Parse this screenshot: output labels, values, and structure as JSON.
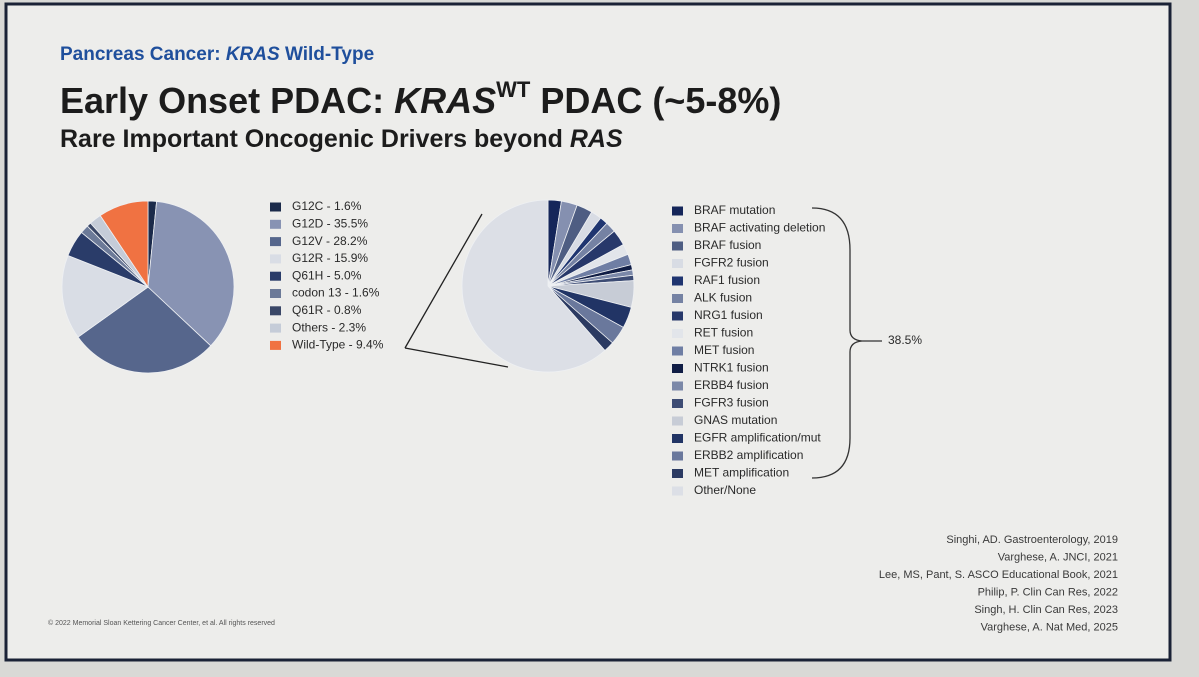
{
  "header": {
    "kicker": [
      "Pancreas Cancer: ",
      "KRAS",
      " Wild-Type"
    ],
    "title": [
      "Early Onset PDAC: ",
      "KRAS",
      "WT",
      " PDAC (~5-8%)"
    ],
    "subtitle": [
      "Rare Important Oncogenic Drivers beyond ",
      "RAS"
    ]
  },
  "chart_data": [
    {
      "type": "pie",
      "categories": [
        "G12C - 1.6%",
        "G12D - 35.5%",
        "G12V - 28.2%",
        "G12R - 15.9%",
        "Q61H - 5.0%",
        "codon 13 - 1.6%",
        "Q61R - 0.8%",
        "Others - 2.3%",
        "Wild-Type - 9.4%"
      ],
      "values": [
        1.6,
        35.5,
        28.2,
        15.9,
        5.0,
        1.6,
        0.8,
        2.3,
        9.4
      ],
      "colors": [
        "#1b2a4a",
        "#8893b3",
        "#56668c",
        "#d9dde5",
        "#2a3c69",
        "#6c7a98",
        "#3a4767",
        "#c5ccd8",
        "#f07242"
      ]
    },
    {
      "type": "pie",
      "categories": [
        "BRAF mutation",
        "BRAF activating deletion",
        "BRAF fusion",
        "FGFR2 fusion",
        "RAF1 fusion",
        "ALK fusion",
        "NRG1 fusion",
        "RET fusion",
        "MET fusion",
        "NTRK1 fusion",
        "ERBB4 fusion",
        "FGFR3 fusion",
        "GNAS mutation",
        "EGFR amplification/mut",
        "ERBB2 amplification",
        "MET amplification",
        "Other/None"
      ],
      "values": [
        2.5,
        3,
        3,
        2,
        1.5,
        2,
        3,
        2,
        2,
        1,
        1,
        1,
        5,
        4,
        3.5,
        2,
        61.5
      ],
      "colors": [
        "#15265a",
        "#8590b0",
        "#4e5d82",
        "#d8dce4",
        "#1f3570",
        "#7582a3",
        "#27386a",
        "#e2e5ea",
        "#6f7ea4",
        "#101d45",
        "#7b88a8",
        "#3d4c74",
        "#c7ccd6",
        "#213465",
        "#6a789c",
        "#2b3a62",
        "#dcdfe6"
      ],
      "annotation": "38.5%"
    }
  ],
  "references": [
    "Singhi, AD. Gastroenterology, 2019",
    "Varghese, A. JNCI, 2021",
    "Lee, MS, Pant, S. ASCO Educational Book, 2021",
    "Philip, P. Clin Can Res, 2022",
    "Singh, H. Clin Can Res, 2023",
    "Varghese, A. Nat Med, 2025"
  ],
  "footer": "© 2022 Memorial Sloan Kettering Cancer Center, et al. All rights reserved"
}
